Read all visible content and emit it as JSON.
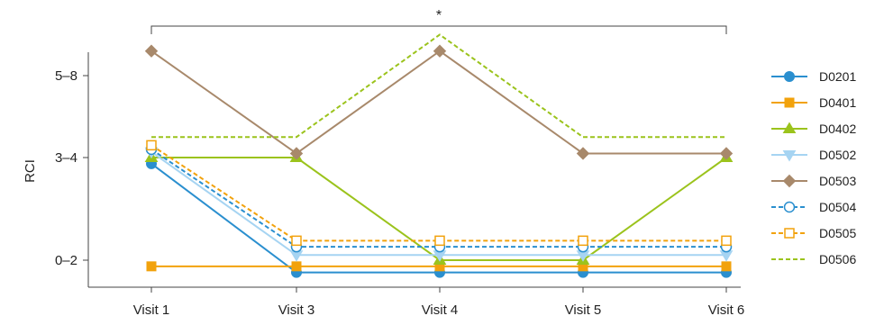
{
  "chart_data": {
    "type": "line",
    "title": "",
    "xlabel": "",
    "ylabel": "RCI",
    "categories": [
      "Visit 1",
      "Visit 3",
      "Visit 4",
      "Visit 5",
      "Visit 6"
    ],
    "y_ticks": [
      {
        "label": "0–2",
        "value": 0
      },
      {
        "label": "3–4",
        "value": 1
      },
      {
        "label": "5–8",
        "value": 2
      }
    ],
    "ylim": [
      -0.15,
      2.35
    ],
    "grid": false,
    "legend_position": "right",
    "annotation": {
      "text": "*",
      "from": "Visit 1",
      "to": "Visit 6"
    },
    "series": [
      {
        "name": "D0201",
        "color": "#2a8fcf",
        "dash": "solid",
        "marker": "circle-filled",
        "values": [
          0.94,
          -0.12,
          -0.12,
          -0.12,
          -0.12
        ]
      },
      {
        "name": "D0401",
        "color": "#f2a20c",
        "dash": "solid",
        "marker": "square-filled",
        "values": [
          -0.06,
          -0.06,
          -0.06,
          -0.06,
          -0.06
        ]
      },
      {
        "name": "D0402",
        "color": "#9bc31c",
        "dash": "solid",
        "marker": "triangle-up",
        "values": [
          1.0,
          1.0,
          0.0,
          0.0,
          1.0
        ]
      },
      {
        "name": "D0502",
        "color": "#a6d4f2",
        "dash": "solid",
        "marker": "triangle-down",
        "values": [
          1.07,
          0.05,
          0.05,
          0.05,
          0.05
        ]
      },
      {
        "name": "D0503",
        "color": "#a8896b",
        "dash": "solid",
        "marker": "diamond",
        "values": [
          2.3,
          1.05,
          2.3,
          1.05,
          1.05
        ]
      },
      {
        "name": "D0504",
        "color": "#2a8fcf",
        "dash": "dashed",
        "marker": "circle-open",
        "values": [
          1.1,
          0.13,
          0.13,
          0.13,
          0.13
        ]
      },
      {
        "name": "D0505",
        "color": "#f2a20c",
        "dash": "dashed",
        "marker": "square-open",
        "values": [
          1.15,
          0.19,
          0.19,
          0.19,
          0.19
        ]
      },
      {
        "name": "D0506",
        "color": "#9bc31c",
        "dash": "dashed",
        "marker": "none",
        "values": [
          1.25,
          1.25,
          2.5,
          1.25,
          1.25
        ]
      }
    ]
  }
}
